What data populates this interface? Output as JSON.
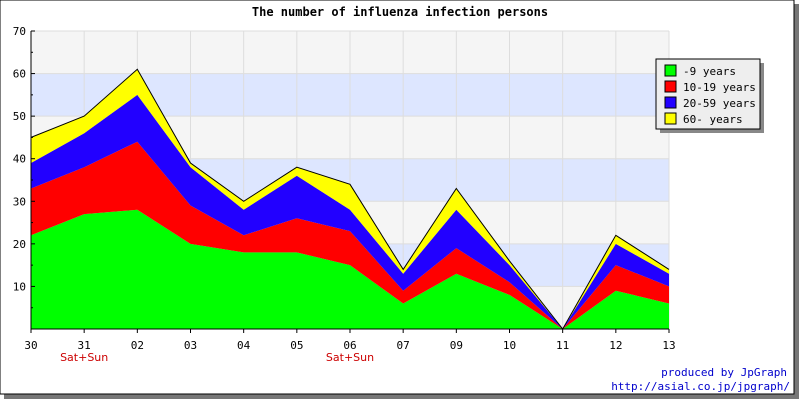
{
  "chart_data": {
    "type": "area",
    "stacked": true,
    "title": "The number of influenza infection persons",
    "x_categories": [
      "30",
      "31",
      "02",
      "03",
      "04",
      "05",
      "06",
      "07",
      "09",
      "10",
      "11",
      "12",
      "13"
    ],
    "weekend_marks": [
      {
        "x_index": 1,
        "label": "Sat+Sun"
      },
      {
        "x_index": 6,
        "label": "Sat+Sun"
      }
    ],
    "ylim": [
      0,
      70
    ],
    "y_ticks": [
      10,
      20,
      30,
      40,
      50,
      60,
      70
    ],
    "grid": true,
    "band_colors": [
      "#f5f5f5",
      "#dde6ff"
    ],
    "legend_position": "top-right",
    "series": [
      {
        "name": "-9 years",
        "color": "#00ff00",
        "values": [
          22,
          27,
          28,
          20,
          18,
          18,
          15,
          6,
          13,
          8,
          0,
          9,
          6
        ]
      },
      {
        "name": "10-19 years",
        "color": "#ff0000",
        "values": [
          11,
          11,
          16,
          9,
          4,
          8,
          8,
          3,
          6,
          3,
          0,
          6,
          4
        ]
      },
      {
        "name": "20-59 years",
        "color": "#2200ff",
        "values": [
          6,
          8,
          11,
          9,
          6,
          10,
          5,
          4,
          9,
          4,
          0,
          5,
          3
        ]
      },
      {
        "name": "60- years",
        "color": "#ffff00",
        "values": [
          6,
          4,
          6,
          1,
          2,
          2,
          6,
          1,
          5,
          1,
          0,
          2,
          1
        ]
      }
    ]
  },
  "footer": {
    "credit": "produced by JpGraph",
    "url": "http://asial.co.jp/jpgraph/",
    "credit_color": "#0000cc"
  }
}
